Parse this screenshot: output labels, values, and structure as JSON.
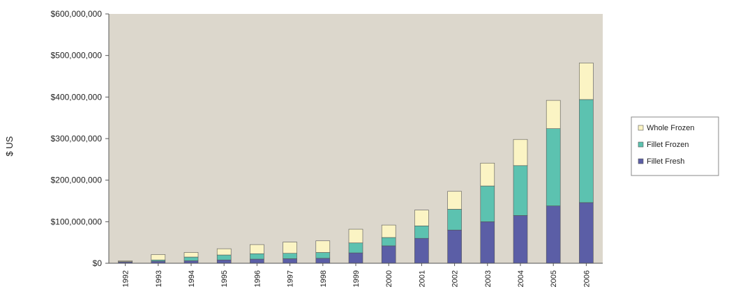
{
  "chart_data": {
    "type": "bar",
    "stacked": true,
    "categories": [
      "1992",
      "1993",
      "1994",
      "1995",
      "1996",
      "1997",
      "1998",
      "1999",
      "2000",
      "2001",
      "2002",
      "2003",
      "2004",
      "2005",
      "2006"
    ],
    "series": [
      {
        "name": "Fillet Fresh",
        "color": "#5b5ea6",
        "values": [
          3000000,
          5000000,
          6000000,
          8000000,
          10000000,
          11000000,
          12000000,
          25000000,
          42000000,
          60000000,
          80000000,
          100000000,
          115000000,
          138000000,
          146000000
        ]
      },
      {
        "name": "Fillet Frozen",
        "color": "#5cc2b0",
        "values": [
          1000000,
          3000000,
          9000000,
          12000000,
          13000000,
          13000000,
          14000000,
          24000000,
          20000000,
          30000000,
          50000000,
          86000000,
          120000000,
          186000000,
          248000000
        ]
      },
      {
        "name": "Whole Frozen",
        "color": "#fbf4c4",
        "values": [
          2000000,
          13000000,
          11000000,
          15000000,
          22000000,
          27000000,
          28000000,
          33000000,
          30000000,
          38000000,
          43000000,
          55000000,
          63000000,
          68000000,
          88000000
        ]
      }
    ],
    "ylabel": "$ US",
    "ylim": [
      0,
      600000000
    ],
    "yticks": [
      0,
      100000000,
      200000000,
      300000000,
      400000000,
      500000000,
      600000000
    ],
    "ytick_labels": [
      "$0",
      "$100,000,000",
      "$200,000,000",
      "$300,000,000",
      "$400,000,000",
      "$500,000,000",
      "$600,000,000"
    ],
    "legend": {
      "placement": "right",
      "entries": [
        "Whole Frozen",
        "Fillet Frozen",
        "Fillet Fresh"
      ]
    },
    "grid": false,
    "plot_background": "#dcd7cc"
  }
}
